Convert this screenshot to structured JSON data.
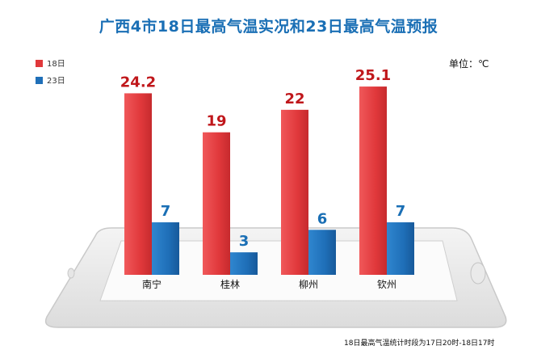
{
  "title": "广西4市18日最高气温实况和23日最高气温预报",
  "unit": "单位：℃",
  "footnote": "18日最高气温统计时段为17日20时-18日17时",
  "colors": {
    "series_18": "#e0383b",
    "series_23": "#1f6fb8",
    "title": "#1a6fb5",
    "label_red": "#c0171b",
    "label_blue": "#1a6fb5"
  },
  "chart_data": {
    "type": "bar",
    "title": "广西4市18日最高气温实况和23日最高气温预报",
    "unit": "℃",
    "categories": [
      "南宁",
      "桂林",
      "柳州",
      "钦州"
    ],
    "series": [
      {
        "name": "18日",
        "values": [
          24.2,
          19,
          22,
          25.1
        ]
      },
      {
        "name": "23日",
        "values": [
          7,
          3,
          6,
          7
        ]
      }
    ],
    "legend_position": "top-left",
    "grid": false
  }
}
